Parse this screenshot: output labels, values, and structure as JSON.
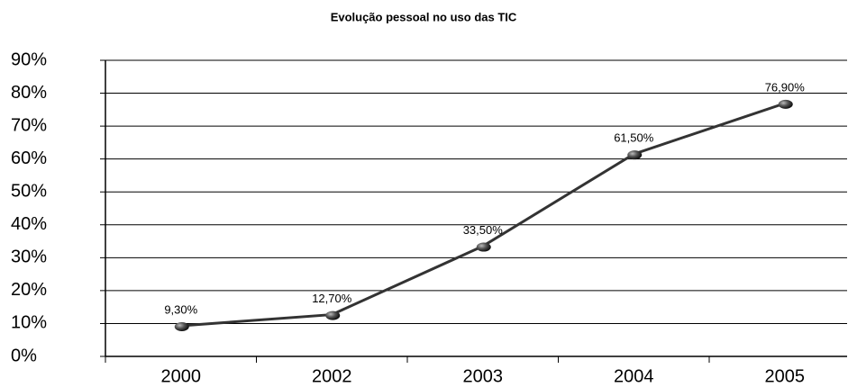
{
  "chart_data": {
    "type": "line",
    "title": "Evolução pessoal no uso das TIC",
    "categories": [
      "2000",
      "2002",
      "2003",
      "2004",
      "2005"
    ],
    "values": [
      9.3,
      12.7,
      33.5,
      61.5,
      76.9
    ],
    "value_labels": [
      "9,30%",
      "12,70%",
      "33,50%",
      "61,50%",
      "76,90%"
    ],
    "color": "#333333",
    "ylim": [
      0,
      90
    ],
    "yticks": [
      {
        "value": 0,
        "label": "0%"
      },
      {
        "value": 10,
        "label": "10%"
      },
      {
        "value": 20,
        "label": "20%"
      },
      {
        "value": 30,
        "label": "30%"
      },
      {
        "value": 40,
        "label": "40%"
      },
      {
        "value": 50,
        "label": "50%"
      },
      {
        "value": 60,
        "label": "60%"
      },
      {
        "value": 70,
        "label": "70%"
      },
      {
        "value": 80,
        "label": "80%"
      },
      {
        "value": 90,
        "label": "90%"
      }
    ],
    "grid": true
  }
}
